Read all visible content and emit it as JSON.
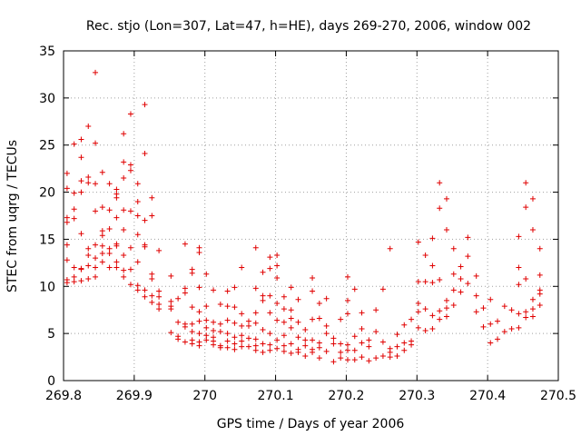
{
  "chart_data": {
    "type": "scatter",
    "title": "Rec. stjo (Lon=307, Lat=47, h=HE), days 269-270, 2006, window 002",
    "xlabel": "GPS time / Days of year 2006",
    "ylabel": "STEC from uqrg / TECUs",
    "xlim": [
      269.8,
      270.5
    ],
    "ylim": [
      0,
      35
    ],
    "xticks": [
      269.8,
      269.9,
      270,
      270.1,
      270.2,
      270.3,
      270.4,
      270.5
    ],
    "xtick_labels": [
      "269.8",
      "269.9",
      "270",
      "270.1",
      "270.2",
      "270.3",
      "270.4",
      "270.5"
    ],
    "yticks": [
      0,
      5,
      10,
      15,
      20,
      25,
      30,
      35
    ],
    "ytick_labels": [
      "0",
      "5",
      "10",
      "15",
      "20",
      "25",
      "30",
      "35"
    ],
    "grid": true,
    "marker": "+",
    "color": "#e00000",
    "points": [
      [
        269.805,
        22.0
      ],
      [
        269.805,
        20.4
      ],
      [
        269.805,
        17.3
      ],
      [
        269.805,
        16.8
      ],
      [
        269.805,
        14.4
      ],
      [
        269.805,
        12.8
      ],
      [
        269.805,
        10.7
      ],
      [
        269.805,
        10.4
      ],
      [
        269.815,
        25.1
      ],
      [
        269.815,
        19.9
      ],
      [
        269.815,
        18.2
      ],
      [
        269.815,
        17.2
      ],
      [
        269.815,
        12.0
      ],
      [
        269.815,
        11.0
      ],
      [
        269.815,
        10.5
      ],
      [
        269.825,
        25.6
      ],
      [
        269.825,
        23.7
      ],
      [
        269.825,
        21.2
      ],
      [
        269.825,
        20.0
      ],
      [
        269.825,
        15.6
      ],
      [
        269.825,
        11.9
      ],
      [
        269.825,
        11.8
      ],
      [
        269.825,
        10.6
      ],
      [
        269.835,
        27.0
      ],
      [
        269.835,
        21.6
      ],
      [
        269.835,
        21.0
      ],
      [
        269.835,
        14.0
      ],
      [
        269.835,
        13.3
      ],
      [
        269.835,
        12.2
      ],
      [
        269.835,
        10.8
      ],
      [
        269.845,
        32.7
      ],
      [
        269.845,
        25.2
      ],
      [
        269.845,
        20.9
      ],
      [
        269.845,
        18.0
      ],
      [
        269.845,
        14.4
      ],
      [
        269.845,
        13.0
      ],
      [
        269.845,
        12.0
      ],
      [
        269.845,
        11.0
      ],
      [
        269.855,
        22.1
      ],
      [
        269.855,
        18.4
      ],
      [
        269.855,
        15.9
      ],
      [
        269.855,
        15.4
      ],
      [
        269.855,
        14.3
      ],
      [
        269.855,
        13.5
      ],
      [
        269.855,
        12.6
      ],
      [
        269.865,
        20.9
      ],
      [
        269.865,
        18.1
      ],
      [
        269.865,
        16.1
      ],
      [
        269.865,
        14.0
      ],
      [
        269.865,
        13.5
      ],
      [
        269.865,
        12.0
      ],
      [
        269.875,
        20.3
      ],
      [
        269.875,
        19.8
      ],
      [
        269.875,
        19.4
      ],
      [
        269.875,
        17.3
      ],
      [
        269.875,
        14.5
      ],
      [
        269.875,
        14.3
      ],
      [
        269.875,
        12.6
      ],
      [
        269.875,
        12.0
      ],
      [
        269.885,
        26.2
      ],
      [
        269.885,
        23.2
      ],
      [
        269.885,
        21.5
      ],
      [
        269.885,
        18.1
      ],
      [
        269.885,
        16.0
      ],
      [
        269.885,
        13.3
      ],
      [
        269.885,
        11.7
      ],
      [
        269.885,
        11.0
      ],
      [
        269.895,
        28.3
      ],
      [
        269.895,
        22.9
      ],
      [
        269.895,
        22.3
      ],
      [
        269.895,
        18.0
      ],
      [
        269.895,
        14.1
      ],
      [
        269.895,
        11.8
      ],
      [
        269.895,
        10.2
      ],
      [
        269.905,
        20.9
      ],
      [
        269.905,
        19.0
      ],
      [
        269.905,
        17.5
      ],
      [
        269.905,
        15.5
      ],
      [
        269.905,
        12.6
      ],
      [
        269.905,
        10.1
      ],
      [
        269.905,
        9.6
      ],
      [
        269.915,
        29.3
      ],
      [
        269.915,
        24.1
      ],
      [
        269.915,
        17.0
      ],
      [
        269.915,
        14.4
      ],
      [
        269.915,
        14.2
      ],
      [
        269.915,
        9.6
      ],
      [
        269.915,
        8.9
      ],
      [
        269.925,
        19.4
      ],
      [
        269.925,
        17.5
      ],
      [
        269.925,
        11.3
      ],
      [
        269.925,
        10.8
      ],
      [
        269.925,
        9.0
      ],
      [
        269.925,
        8.3
      ],
      [
        269.935,
        13.8
      ],
      [
        269.935,
        9.5
      ],
      [
        269.935,
        8.9
      ],
      [
        269.935,
        8.1
      ],
      [
        269.935,
        7.6
      ],
      [
        269.952,
        11.1
      ],
      [
        269.952,
        8.4
      ],
      [
        269.952,
        7.9
      ],
      [
        269.952,
        7.6
      ],
      [
        269.952,
        5.1
      ],
      [
        269.962,
        8.7
      ],
      [
        269.962,
        6.2
      ],
      [
        269.962,
        4.7
      ],
      [
        269.962,
        4.4
      ],
      [
        269.972,
        14.5
      ],
      [
        269.972,
        9.8
      ],
      [
        269.972,
        9.3
      ],
      [
        269.972,
        6.0
      ],
      [
        269.972,
        5.7
      ],
      [
        269.972,
        4.1
      ],
      [
        269.982,
        11.8
      ],
      [
        269.982,
        11.4
      ],
      [
        269.982,
        7.8
      ],
      [
        269.982,
        6.0
      ],
      [
        269.982,
        5.2
      ],
      [
        269.982,
        4.3
      ],
      [
        269.982,
        3.9
      ],
      [
        269.992,
        14.1
      ],
      [
        269.992,
        13.6
      ],
      [
        269.992,
        9.9
      ],
      [
        269.992,
        7.3
      ],
      [
        269.992,
        6.3
      ],
      [
        269.992,
        5.0
      ],
      [
        269.992,
        4.1
      ],
      [
        269.992,
        3.7
      ],
      [
        270.002,
        11.3
      ],
      [
        270.002,
        7.9
      ],
      [
        270.002,
        6.4
      ],
      [
        270.002,
        5.6
      ],
      [
        270.002,
        4.8
      ],
      [
        270.002,
        4.3
      ],
      [
        270.012,
        9.6
      ],
      [
        270.012,
        6.2
      ],
      [
        270.012,
        5.3
      ],
      [
        270.012,
        4.6
      ],
      [
        270.012,
        4.2
      ],
      [
        270.012,
        3.8
      ],
      [
        270.022,
        8.1
      ],
      [
        270.022,
        6.0
      ],
      [
        270.022,
        5.2
      ],
      [
        270.022,
        3.7
      ],
      [
        270.022,
        3.5
      ],
      [
        270.032,
        9.5
      ],
      [
        270.032,
        7.9
      ],
      [
        270.032,
        6.4
      ],
      [
        270.032,
        5.0
      ],
      [
        270.032,
        4.2
      ],
      [
        270.032,
        3.5
      ],
      [
        270.042,
        9.9
      ],
      [
        270.042,
        7.8
      ],
      [
        270.042,
        6.1
      ],
      [
        270.042,
        4.6
      ],
      [
        270.042,
        3.9
      ],
      [
        270.042,
        3.3
      ],
      [
        270.052,
        12.0
      ],
      [
        270.052,
        7.1
      ],
      [
        270.052,
        5.8
      ],
      [
        270.052,
        4.8
      ],
      [
        270.052,
        4.2
      ],
      [
        270.052,
        3.6
      ],
      [
        270.062,
        6.3
      ],
      [
        270.062,
        5.8
      ],
      [
        270.062,
        4.5
      ],
      [
        270.062,
        3.6
      ],
      [
        270.072,
        14.1
      ],
      [
        270.072,
        9.8
      ],
      [
        270.072,
        7.2
      ],
      [
        270.072,
        6.1
      ],
      [
        270.072,
        4.4
      ],
      [
        270.072,
        3.7
      ],
      [
        270.072,
        3.2
      ],
      [
        270.082,
        11.5
      ],
      [
        270.082,
        9.0
      ],
      [
        270.082,
        8.5
      ],
      [
        270.082,
        5.4
      ],
      [
        270.082,
        3.9
      ],
      [
        270.082,
        3.0
      ],
      [
        270.092,
        13.1
      ],
      [
        270.092,
        11.9
      ],
      [
        270.092,
        9.0
      ],
      [
        270.092,
        7.2
      ],
      [
        270.092,
        5.0
      ],
      [
        270.092,
        3.8
      ],
      [
        270.092,
        3.2
      ],
      [
        270.102,
        13.3
      ],
      [
        270.102,
        12.2
      ],
      [
        270.102,
        10.9
      ],
      [
        270.102,
        8.2
      ],
      [
        270.102,
        6.4
      ],
      [
        270.102,
        4.3
      ],
      [
        270.102,
        3.4
      ],
      [
        270.112,
        8.9
      ],
      [
        270.112,
        7.6
      ],
      [
        270.112,
        6.2
      ],
      [
        270.112,
        4.8
      ],
      [
        270.112,
        3.7
      ],
      [
        270.112,
        3.1
      ],
      [
        270.122,
        9.9
      ],
      [
        270.122,
        7.5
      ],
      [
        270.122,
        6.6
      ],
      [
        270.122,
        5.6
      ],
      [
        270.122,
        3.9
      ],
      [
        270.122,
        2.9
      ],
      [
        270.132,
        8.6
      ],
      [
        270.132,
        6.2
      ],
      [
        270.132,
        4.6
      ],
      [
        270.132,
        3.3
      ],
      [
        270.132,
        3.0
      ],
      [
        270.142,
        5.4
      ],
      [
        270.142,
        4.3
      ],
      [
        270.142,
        3.7
      ],
      [
        270.142,
        2.6
      ],
      [
        270.152,
        10.9
      ],
      [
        270.152,
        9.5
      ],
      [
        270.152,
        6.5
      ],
      [
        270.152,
        4.3
      ],
      [
        270.152,
        3.3
      ],
      [
        270.152,
        3.0
      ],
      [
        270.162,
        8.2
      ],
      [
        270.162,
        6.6
      ],
      [
        270.162,
        4.0
      ],
      [
        270.162,
        3.5
      ],
      [
        270.162,
        2.4
      ],
      [
        270.172,
        8.7
      ],
      [
        270.172,
        5.8
      ],
      [
        270.172,
        5.0
      ],
      [
        270.172,
        3.1
      ],
      [
        270.182,
        4.5
      ],
      [
        270.182,
        3.9
      ],
      [
        270.182,
        2.0
      ],
      [
        270.192,
        6.5
      ],
      [
        270.192,
        3.9
      ],
      [
        270.192,
        3.0
      ],
      [
        270.192,
        2.4
      ],
      [
        270.202,
        11.0
      ],
      [
        270.202,
        8.5
      ],
      [
        270.202,
        7.1
      ],
      [
        270.202,
        3.8
      ],
      [
        270.202,
        3.2
      ],
      [
        270.202,
        2.2
      ],
      [
        270.212,
        9.7
      ],
      [
        270.212,
        4.7
      ],
      [
        270.212,
        3.2
      ],
      [
        270.212,
        2.2
      ],
      [
        270.222,
        7.2
      ],
      [
        270.222,
        5.5
      ],
      [
        270.222,
        4.0
      ],
      [
        270.222,
        2.5
      ],
      [
        270.232,
        4.3
      ],
      [
        270.232,
        3.6
      ],
      [
        270.232,
        2.1
      ],
      [
        270.242,
        7.5
      ],
      [
        270.242,
        5.2
      ],
      [
        270.242,
        2.4
      ],
      [
        270.252,
        9.7
      ],
      [
        270.252,
        4.1
      ],
      [
        270.252,
        2.6
      ],
      [
        270.262,
        14.0
      ],
      [
        270.262,
        3.4
      ],
      [
        270.262,
        3.0
      ],
      [
        270.262,
        2.5
      ],
      [
        270.272,
        4.9
      ],
      [
        270.272,
        3.6
      ],
      [
        270.272,
        2.6
      ],
      [
        270.282,
        5.9
      ],
      [
        270.282,
        4.0
      ],
      [
        270.282,
        3.2
      ],
      [
        270.292,
        6.5
      ],
      [
        270.292,
        4.2
      ],
      [
        270.292,
        3.8
      ],
      [
        270.302,
        14.7
      ],
      [
        270.302,
        10.5
      ],
      [
        270.302,
        8.2
      ],
      [
        270.302,
        7.3
      ],
      [
        270.302,
        5.6
      ],
      [
        270.312,
        13.3
      ],
      [
        270.312,
        10.5
      ],
      [
        270.312,
        7.6
      ],
      [
        270.312,
        5.3
      ],
      [
        270.322,
        15.1
      ],
      [
        270.322,
        12.2
      ],
      [
        270.322,
        10.4
      ],
      [
        270.322,
        6.9
      ],
      [
        270.322,
        5.5
      ],
      [
        270.332,
        21.0
      ],
      [
        270.332,
        18.3
      ],
      [
        270.332,
        10.7
      ],
      [
        270.332,
        7.4
      ],
      [
        270.332,
        6.5
      ],
      [
        270.342,
        19.3
      ],
      [
        270.342,
        16.0
      ],
      [
        270.342,
        8.5
      ],
      [
        270.342,
        7.7
      ],
      [
        270.342,
        6.8
      ],
      [
        270.352,
        14.0
      ],
      [
        270.352,
        11.3
      ],
      [
        270.352,
        9.6
      ],
      [
        270.352,
        8.0
      ],
      [
        270.362,
        12.1
      ],
      [
        270.362,
        10.8
      ],
      [
        270.362,
        9.4
      ],
      [
        270.372,
        15.2
      ],
      [
        270.372,
        13.2
      ],
      [
        270.372,
        10.3
      ],
      [
        270.384,
        11.1
      ],
      [
        270.384,
        9.0
      ],
      [
        270.384,
        7.3
      ],
      [
        270.394,
        7.7
      ],
      [
        270.394,
        5.7
      ],
      [
        270.404,
        8.6
      ],
      [
        270.404,
        6.0
      ],
      [
        270.404,
        4.0
      ],
      [
        270.414,
        6.3
      ],
      [
        270.414,
        4.4
      ],
      [
        270.424,
        7.9
      ],
      [
        270.424,
        5.2
      ],
      [
        270.434,
        7.5
      ],
      [
        270.434,
        5.5
      ],
      [
        270.444,
        15.3
      ],
      [
        270.444,
        12.0
      ],
      [
        270.444,
        10.2
      ],
      [
        270.444,
        7.1
      ],
      [
        270.444,
        5.6
      ],
      [
        270.454,
        21.0
      ],
      [
        270.454,
        18.4
      ],
      [
        270.454,
        10.8
      ],
      [
        270.454,
        7.3
      ],
      [
        270.454,
        6.7
      ],
      [
        270.464,
        19.3
      ],
      [
        270.464,
        16.0
      ],
      [
        270.464,
        8.6
      ],
      [
        270.464,
        7.6
      ],
      [
        270.464,
        6.8
      ],
      [
        270.474,
        14.0
      ],
      [
        270.474,
        11.2
      ],
      [
        270.474,
        9.6
      ],
      [
        270.474,
        9.2
      ],
      [
        270.474,
        8.0
      ]
    ]
  }
}
